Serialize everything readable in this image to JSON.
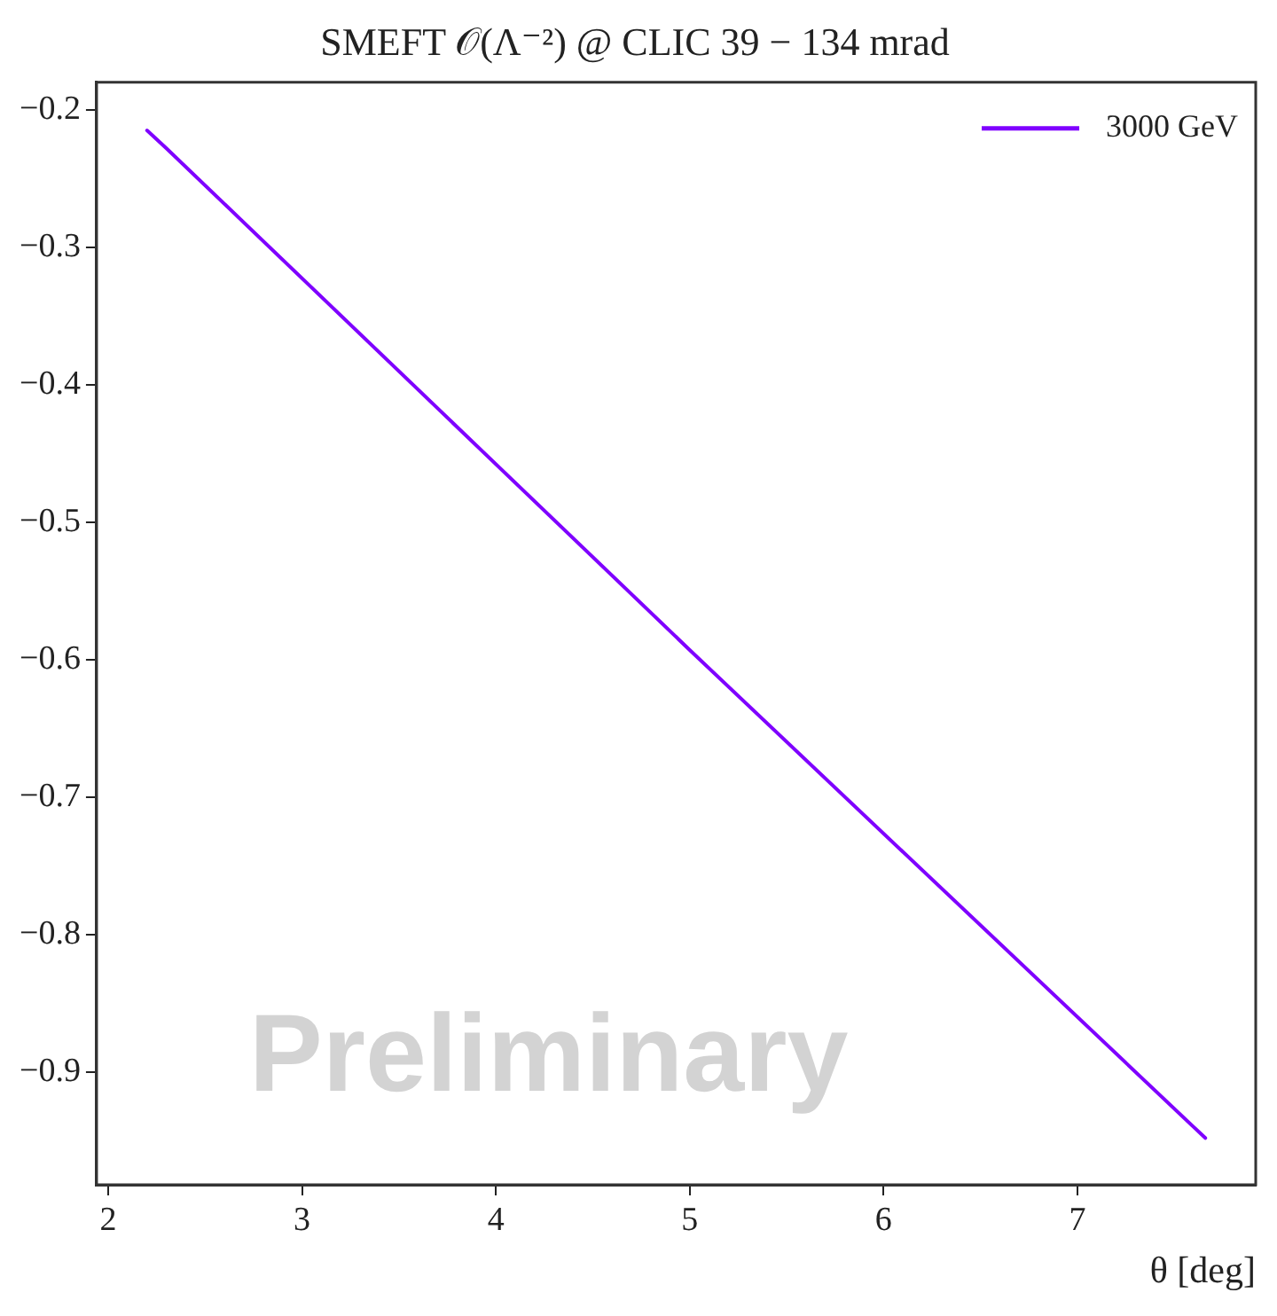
{
  "chart_data": {
    "type": "line",
    "title": "SMEFT 𝒪(Λ⁻²) @ CLIC 39 − 134 mrad",
    "xlabel": "θ [deg]",
    "series": [
      {
        "name": "3000 GeV",
        "color": "#7f00ff",
        "x": [
          2.2,
          2.3,
          5,
          7.6,
          7.66
        ],
        "values": [
          -0.215,
          -0.228,
          -0.593,
          -0.94,
          -0.948
        ]
      }
    ],
    "xlim": [
      1.94,
      7.92
    ],
    "xticks": [
      2,
      3,
      4,
      5,
      6,
      7
    ],
    "ylim": [
      -0.982,
      -0.18
    ],
    "yticks": [
      -0.9,
      -0.8,
      -0.7,
      -0.6,
      -0.5,
      -0.4,
      -0.3,
      -0.2
    ],
    "legend": "top right",
    "marker": "none",
    "line_style": "solid",
    "annotations": [
      "Preliminary"
    ]
  }
}
